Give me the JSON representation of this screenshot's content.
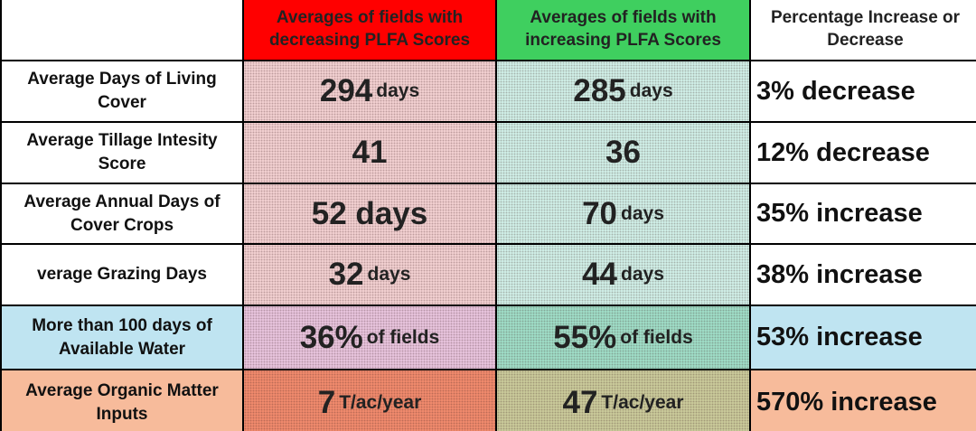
{
  "header": {
    "decreasing": "Averages of fields with decreasing PLFA Scores",
    "increasing": "Averages of fields with increasing PLFA Scores",
    "change": "Percentage Increase or Decrease"
  },
  "rows": [
    {
      "label": "Average Days of Living Cover",
      "decreasing": {
        "value": "294",
        "unit": "days"
      },
      "increasing": {
        "value": "285",
        "unit": "days"
      },
      "change": "3% decrease"
    },
    {
      "label": "Average Tillage Intesity Score",
      "decreasing": {
        "value": "41"
      },
      "increasing": {
        "value": "36"
      },
      "change": "12% decrease"
    },
    {
      "label": "Average Annual Days of Cover Crops",
      "decreasing": {
        "value": "52 days"
      },
      "increasing": {
        "value": "70",
        "unit": "days"
      },
      "change": "35% increase"
    },
    {
      "label": "verage Grazing Days",
      "decreasing": {
        "value": "32",
        "unit": "days"
      },
      "increasing": {
        "value": "44",
        "unit": "days"
      },
      "change": "38% increase"
    },
    {
      "label": "More than 100 days of Available Water",
      "decreasing": {
        "value": "36%",
        "unit": "of fields"
      },
      "increasing": {
        "value": "55%",
        "unit": "of fields"
      },
      "change": "53% increase"
    },
    {
      "label": "Average Organic Matter Inputs",
      "decreasing": {
        "value": "7",
        "unit": "T/ac/year"
      },
      "increasing": {
        "value": "47",
        "unit": "T/ac/year"
      },
      "change": "570% increase"
    }
  ]
}
